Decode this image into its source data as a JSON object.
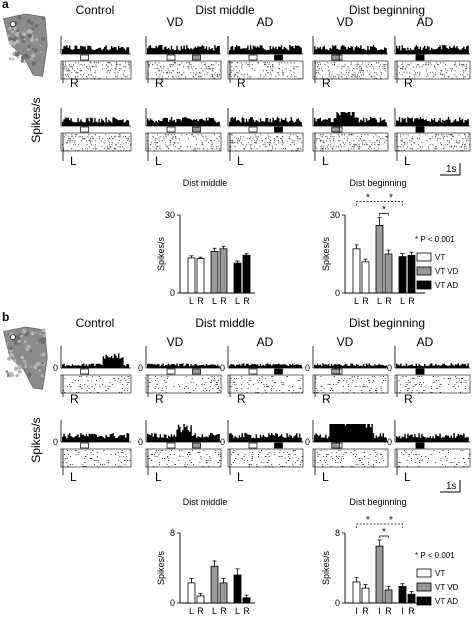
{
  "panels": [
    {
      "label": "a",
      "headers": [
        "Control",
        "Dist middle",
        "Dist beginning"
      ],
      "subheaders": [
        "VD",
        "AD",
        "VD",
        "AD"
      ],
      "axis_label": "Spikes/s",
      "row_labels": [
        "R",
        "L"
      ],
      "scale_bar": "1s",
      "bar_titles": [
        "Dist middle",
        "Dist beginning"
      ]
    },
    {
      "label": "b",
      "headers": [
        "Control",
        "Dist middle",
        "Dist beginning"
      ],
      "subheaders": [
        "VD",
        "AD",
        "VD",
        "AD"
      ],
      "axis_label": "Spikes/s",
      "zero_label": "0",
      "row_labels": [
        "R",
        "L"
      ],
      "scale_bar": "1s",
      "bar_titles": [
        "Dist middle",
        "Dist beginning"
      ]
    }
  ],
  "legend": {
    "significance": "* P < 0.001",
    "items": [
      "VT",
      "VT VD",
      "VT AD"
    ]
  },
  "colors": {
    "vt": "#ffffff",
    "vd": "#999999",
    "ad": "#000000"
  },
  "chart_data": [
    {
      "type": "bar",
      "title": "Dist middle",
      "ylabel": "Spikes/s",
      "ylim": [
        0,
        30
      ],
      "yticks": [
        0,
        30
      ],
      "categories": [
        "L",
        "R",
        "L",
        "R",
        "L",
        "R"
      ],
      "groups": [
        "VT",
        "VT VD",
        "VT AD"
      ],
      "values": [
        13.5,
        13.3,
        16,
        17,
        11.5,
        14.5
      ],
      "errors": [
        0.8,
        0.5,
        1.2,
        1.0,
        0.8,
        0.6
      ]
    },
    {
      "type": "bar",
      "title": "Dist beginning",
      "ylabel": "Spikes/s",
      "ylim": [
        0,
        30
      ],
      "yticks": [
        0,
        30
      ],
      "categories": [
        "L",
        "R",
        "L",
        "R",
        "L",
        "R"
      ],
      "groups": [
        "VT",
        "VT VD",
        "VT AD"
      ],
      "values": [
        17,
        12,
        26,
        15,
        14,
        14.5
      ],
      "errors": [
        1.5,
        1.0,
        3.0,
        1.5,
        1.2,
        1.2
      ],
      "significance": [
        "*",
        "*",
        "*"
      ]
    },
    {
      "type": "bar",
      "title": "Dist middle",
      "ylabel": "Spikes/s",
      "ylim": [
        0,
        8
      ],
      "yticks": [
        0,
        8
      ],
      "categories": [
        "L",
        "R",
        "L",
        "R",
        "L",
        "R"
      ],
      "groups": [
        "VT",
        "VT VD",
        "VT AD"
      ],
      "values": [
        2.3,
        0.8,
        4.2,
        2.3,
        3.2,
        0.6
      ],
      "errors": [
        0.5,
        0.3,
        0.6,
        0.5,
        0.7,
        0.3
      ]
    },
    {
      "type": "bar",
      "title": "Dist beginning",
      "ylabel": "Spikes/s",
      "ylim": [
        0,
        8
      ],
      "yticks": [
        0,
        8
      ],
      "categories": [
        "I",
        "R",
        "I",
        "R",
        "I",
        "R"
      ],
      "groups": [
        "VT",
        "VT VD",
        "VT AD"
      ],
      "values": [
        2.4,
        1.7,
        6.5,
        1.5,
        1.9,
        1.0
      ],
      "errors": [
        0.5,
        0.4,
        0.7,
        0.4,
        0.3,
        0.3
      ],
      "significance": [
        "*",
        "*",
        "*"
      ]
    }
  ]
}
